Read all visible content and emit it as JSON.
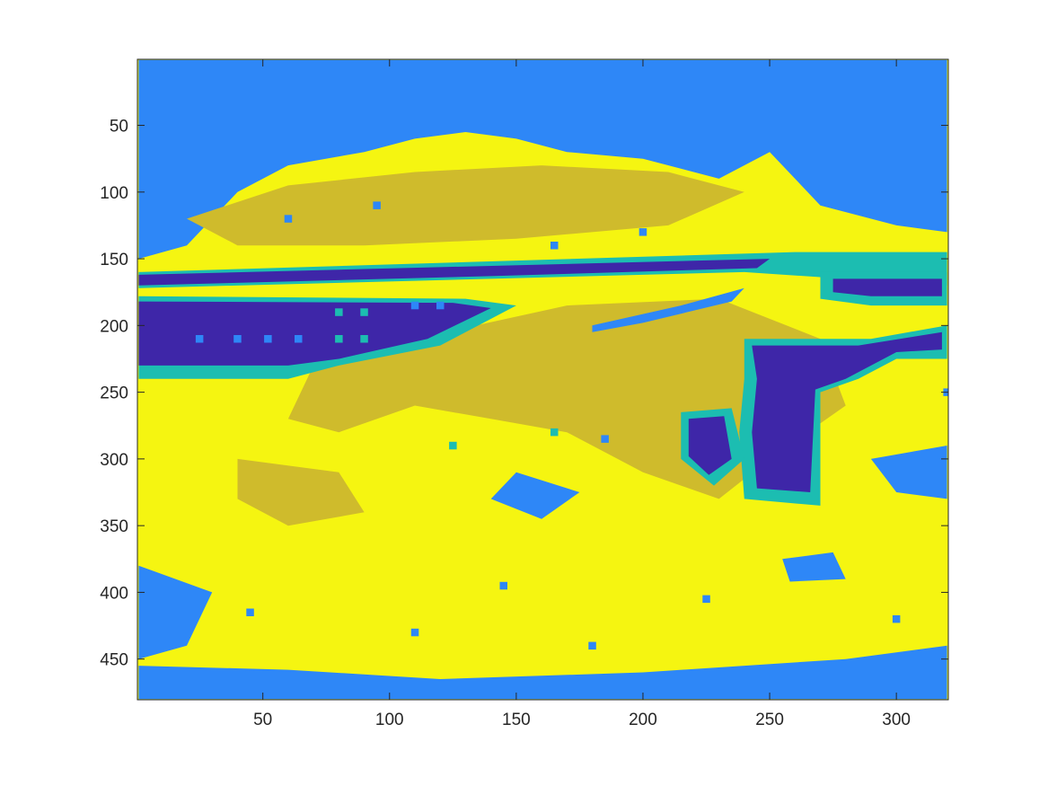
{
  "chart_data": {
    "type": "heatmap",
    "title": "",
    "xlabel": "",
    "ylabel": "",
    "xlim": [
      0.5,
      320.5
    ],
    "ylim": [
      0.5,
      480.5
    ],
    "y_reversed": true,
    "x_ticks": [
      50,
      100,
      150,
      200,
      250,
      300
    ],
    "x_tick_labels": [
      "50",
      "100",
      "150",
      "200",
      "250",
      "300"
    ],
    "y_ticks": [
      50,
      100,
      150,
      200,
      250,
      300,
      350,
      400,
      450
    ],
    "y_tick_labels": [
      "50",
      "100",
      "150",
      "200",
      "250",
      "300",
      "350",
      "400",
      "450"
    ],
    "grid": false,
    "colorbar": false,
    "classes": [
      {
        "index": 1,
        "color": "#3e26a8"
      },
      {
        "index": 2,
        "color": "#2e87f7"
      },
      {
        "index": 3,
        "color": "#1cbdb1"
      },
      {
        "index": 4,
        "color": "#cfbb2c"
      },
      {
        "index": 5,
        "color": "#f5f511"
      }
    ],
    "background_class": 5,
    "regions": [
      {
        "class": 2,
        "points": [
          [
            1,
            1
          ],
          [
            320,
            1
          ],
          [
            320,
            130
          ],
          [
            300,
            125
          ],
          [
            270,
            110
          ],
          [
            250,
            70
          ],
          [
            230,
            90
          ],
          [
            200,
            75
          ],
          [
            170,
            70
          ],
          [
            150,
            60
          ],
          [
            130,
            55
          ],
          [
            110,
            60
          ],
          [
            90,
            70
          ],
          [
            60,
            80
          ],
          [
            40,
            100
          ],
          [
            20,
            140
          ],
          [
            1,
            150
          ]
        ]
      },
      {
        "class": 4,
        "points": [
          [
            20,
            120
          ],
          [
            60,
            95
          ],
          [
            110,
            85
          ],
          [
            160,
            80
          ],
          [
            210,
            85
          ],
          [
            240,
            100
          ],
          [
            210,
            125
          ],
          [
            150,
            135
          ],
          [
            90,
            140
          ],
          [
            40,
            140
          ]
        ]
      },
      {
        "class": 4,
        "points": [
          [
            110,
            210
          ],
          [
            170,
            185
          ],
          [
            230,
            180
          ],
          [
            270,
            210
          ],
          [
            280,
            260
          ],
          [
            250,
            300
          ],
          [
            230,
            330
          ],
          [
            200,
            310
          ],
          [
            170,
            280
          ],
          [
            140,
            270
          ],
          [
            110,
            260
          ],
          [
            80,
            280
          ],
          [
            60,
            270
          ],
          [
            70,
            230
          ]
        ]
      },
      {
        "class": 4,
        "points": [
          [
            40,
            300
          ],
          [
            80,
            310
          ],
          [
            90,
            340
          ],
          [
            60,
            350
          ],
          [
            40,
            330
          ]
        ]
      },
      {
        "class": 3,
        "points": [
          [
            1,
            160
          ],
          [
            260,
            145
          ],
          [
            320,
            145
          ],
          [
            320,
            170
          ],
          [
            280,
            165
          ],
          [
            240,
            160
          ],
          [
            140,
            165
          ],
          [
            1,
            172
          ]
        ]
      },
      {
        "class": 1,
        "points": [
          [
            1,
            162
          ],
          [
            250,
            150
          ],
          [
            245,
            157
          ],
          [
            140,
            163
          ],
          [
            1,
            170
          ]
        ]
      },
      {
        "class": 3,
        "points": [
          [
            1,
            178
          ],
          [
            130,
            180
          ],
          [
            150,
            185
          ],
          [
            120,
            215
          ],
          [
            80,
            230
          ],
          [
            60,
            240
          ],
          [
            1,
            240
          ]
        ]
      },
      {
        "class": 1,
        "points": [
          [
            1,
            182
          ],
          [
            125,
            183
          ],
          [
            140,
            187
          ],
          [
            115,
            210
          ],
          [
            80,
            225
          ],
          [
            60,
            230
          ],
          [
            1,
            230
          ]
        ]
      },
      {
        "class": 2,
        "points": [
          [
            180,
            200
          ],
          [
            215,
            185
          ],
          [
            240,
            172
          ],
          [
            235,
            182
          ],
          [
            200,
            198
          ],
          [
            180,
            205
          ]
        ]
      },
      {
        "class": 3,
        "points": [
          [
            240,
            210
          ],
          [
            290,
            210
          ],
          [
            320,
            200
          ],
          [
            320,
            225
          ],
          [
            300,
            225
          ],
          [
            285,
            240
          ],
          [
            270,
            250
          ],
          [
            270,
            335
          ],
          [
            240,
            330
          ],
          [
            238,
            280
          ],
          [
            240,
            240
          ]
        ]
      },
      {
        "class": 1,
        "points": [
          [
            243,
            215
          ],
          [
            285,
            215
          ],
          [
            318,
            205
          ],
          [
            318,
            218
          ],
          [
            300,
            220
          ],
          [
            280,
            240
          ],
          [
            268,
            248
          ],
          [
            266,
            325
          ],
          [
            245,
            322
          ],
          [
            243,
            280
          ],
          [
            245,
            240
          ]
        ]
      },
      {
        "class": 3,
        "points": [
          [
            270,
            160
          ],
          [
            320,
            160
          ],
          [
            320,
            185
          ],
          [
            290,
            185
          ],
          [
            270,
            180
          ]
        ]
      },
      {
        "class": 1,
        "points": [
          [
            275,
            165
          ],
          [
            318,
            165
          ],
          [
            318,
            178
          ],
          [
            290,
            178
          ],
          [
            275,
            175
          ]
        ]
      },
      {
        "class": 3,
        "points": [
          [
            215,
            265
          ],
          [
            235,
            262
          ],
          [
            240,
            300
          ],
          [
            228,
            320
          ],
          [
            215,
            300
          ]
        ]
      },
      {
        "class": 1,
        "points": [
          [
            218,
            270
          ],
          [
            232,
            268
          ],
          [
            235,
            300
          ],
          [
            226,
            312
          ],
          [
            218,
            298
          ]
        ]
      },
      {
        "class": 2,
        "points": [
          [
            1,
            380
          ],
          [
            30,
            400
          ],
          [
            20,
            440
          ],
          [
            1,
            450
          ]
        ]
      },
      {
        "class": 2,
        "points": [
          [
            1,
            455
          ],
          [
            60,
            458
          ],
          [
            120,
            465
          ],
          [
            200,
            460
          ],
          [
            280,
            450
          ],
          [
            320,
            440
          ],
          [
            320,
            480
          ],
          [
            1,
            480
          ]
        ]
      },
      {
        "class": 2,
        "points": [
          [
            290,
            300
          ],
          [
            320,
            290
          ],
          [
            320,
            330
          ],
          [
            300,
            325
          ]
        ]
      },
      {
        "class": 2,
        "points": [
          [
            150,
            310
          ],
          [
            175,
            325
          ],
          [
            160,
            345
          ],
          [
            140,
            330
          ]
        ]
      },
      {
        "class": 2,
        "points": [
          [
            255,
            375
          ],
          [
            275,
            370
          ],
          [
            280,
            390
          ],
          [
            258,
            392
          ]
        ]
      }
    ],
    "dots": [
      {
        "class": 2,
        "x": 25,
        "y": 210
      },
      {
        "class": 2,
        "x": 40,
        "y": 210
      },
      {
        "class": 2,
        "x": 52,
        "y": 210
      },
      {
        "class": 2,
        "x": 64,
        "y": 210
      },
      {
        "class": 3,
        "x": 80,
        "y": 190
      },
      {
        "class": 3,
        "x": 90,
        "y": 190
      },
      {
        "class": 3,
        "x": 80,
        "y": 210
      },
      {
        "class": 3,
        "x": 90,
        "y": 210
      },
      {
        "class": 2,
        "x": 110,
        "y": 185
      },
      {
        "class": 2,
        "x": 120,
        "y": 185
      },
      {
        "class": 2,
        "x": 165,
        "y": 140
      },
      {
        "class": 2,
        "x": 200,
        "y": 130
      },
      {
        "class": 2,
        "x": 60,
        "y": 120
      },
      {
        "class": 2,
        "x": 95,
        "y": 110
      },
      {
        "class": 2,
        "x": 145,
        "y": 395
      },
      {
        "class": 2,
        "x": 180,
        "y": 440
      },
      {
        "class": 2,
        "x": 300,
        "y": 420
      },
      {
        "class": 2,
        "x": 45,
        "y": 415
      },
      {
        "class": 2,
        "x": 225,
        "y": 405
      },
      {
        "class": 2,
        "x": 110,
        "y": 430
      },
      {
        "class": 3,
        "x": 125,
        "y": 290
      },
      {
        "class": 3,
        "x": 165,
        "y": 280
      },
      {
        "class": 2,
        "x": 185,
        "y": 285
      },
      {
        "class": 2,
        "x": 320,
        "y": 250
      }
    ]
  }
}
